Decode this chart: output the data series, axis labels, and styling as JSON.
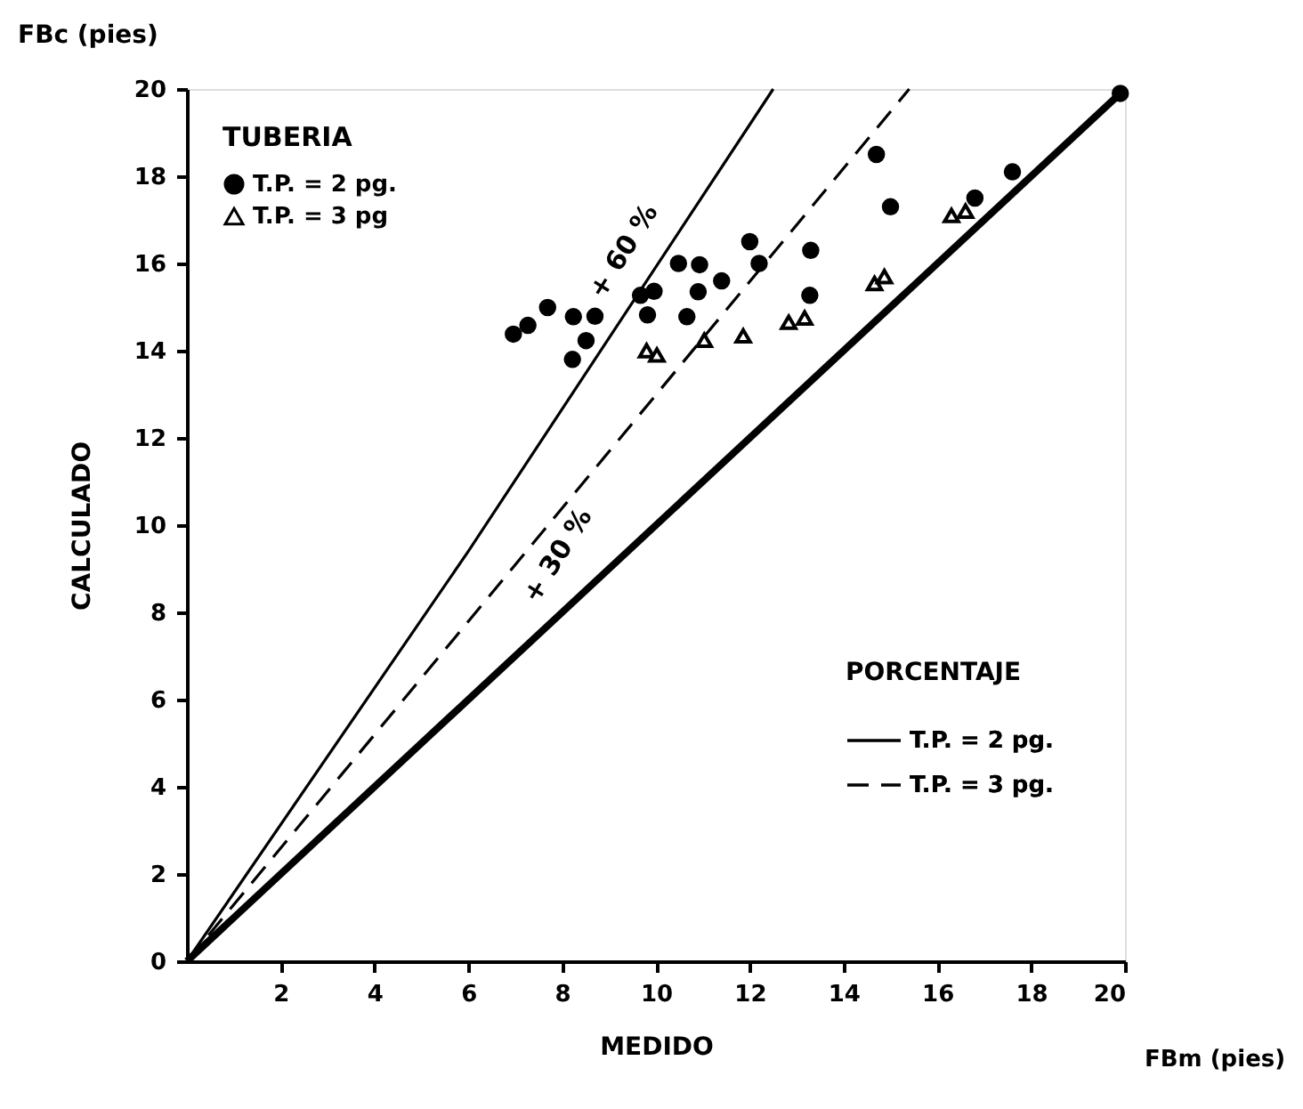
{
  "chart_data": {
    "type": "scatter",
    "xlabel": "MEDIDO",
    "ylabel": "CALCULADO",
    "legend_title": "TUBERIA",
    "legend": "top left",
    "grid": false,
    "xlim": [
      0,
      20
    ],
    "ylim": [
      0,
      20
    ],
    "xticks": [
      2,
      4,
      6,
      8,
      10,
      12,
      14,
      16,
      18,
      20
    ],
    "yticks": [
      0,
      2,
      4,
      6,
      8,
      10,
      12,
      14,
      16,
      18,
      20
    ],
    "series": [
      {
        "name": "T.P. = 2 pg.",
        "marker": "circle",
        "color": "#000000",
        "x": [
          6.96,
          7.27,
          7.69,
          8.24,
          8.7,
          8.51,
          8.22,
          9.67,
          9.96,
          9.82,
          10.48,
          10.93,
          12.2,
          11.4,
          10.9,
          10.66,
          13.28,
          13.3,
          12.0,
          14.7,
          15.0,
          16.8,
          17.6,
          19.9
        ],
        "values": [
          14.38,
          14.58,
          14.99,
          14.78,
          14.79,
          14.23,
          13.8,
          15.27,
          15.36,
          14.82,
          16.0,
          15.97,
          16.0,
          15.6,
          15.35,
          14.78,
          15.27,
          16.3,
          16.5,
          18.5,
          17.3,
          17.5,
          18.1,
          19.9
        ]
      },
      {
        "name": "T.P. = 3 pg",
        "marker": "triangle",
        "color": "#000000",
        "x": [
          9.8,
          10.02,
          11.03,
          11.86,
          12.83,
          13.17,
          14.66,
          14.87,
          16.3,
          16.6
        ],
        "values": [
          14.0,
          13.9,
          14.24,
          14.34,
          14.65,
          14.75,
          15.54,
          15.7,
          17.1,
          17.2
        ]
      },
      {
        "name": "T.P. = 2 pg.",
        "type": "line",
        "line_style": "solid",
        "color": "#000000",
        "x": [
          0,
          6,
          12.5
        ],
        "values": [
          0,
          9.4,
          20
        ]
      },
      {
        "name": "T.P. = 3 pg.",
        "type": "line",
        "line_style": "dashed",
        "color": "#000000",
        "x": [
          0,
          15.4
        ],
        "values": [
          0,
          20
        ]
      },
      {
        "type": "line",
        "line_style": "solid",
        "color": "#000000",
        "x": [
          0,
          20
        ],
        "values": [
          0,
          20
        ]
      }
    ],
    "annotations": [
      "+ 60 %",
      "+ 30 %",
      "PORCENTAJE",
      "FBc (pies)",
      "FBm (pies)"
    ]
  }
}
